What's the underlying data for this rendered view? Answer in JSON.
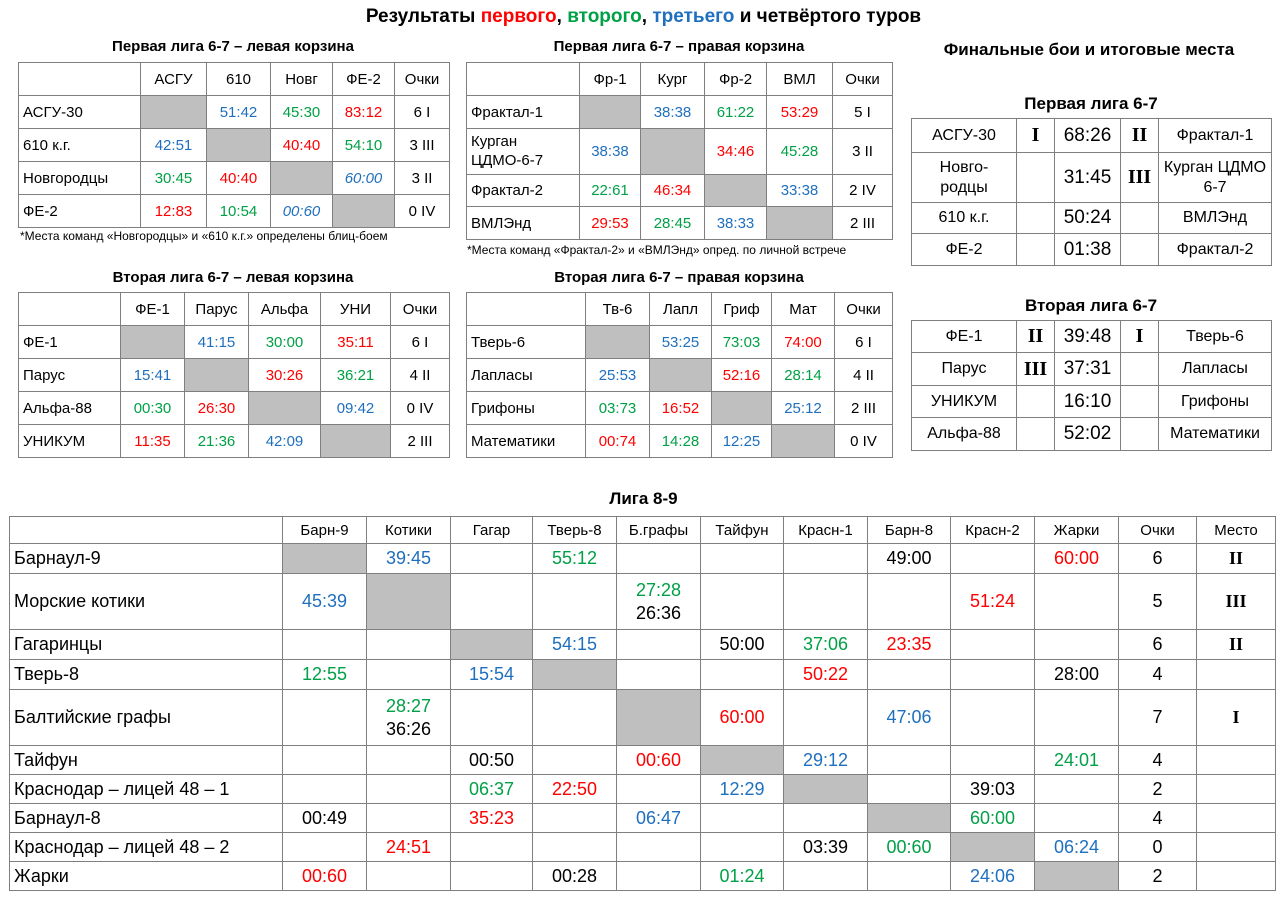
{
  "title": {
    "pre": "Результаты ",
    "w1": "первого",
    "sep1": ", ",
    "w2": "второго",
    "sep2": ", ",
    "w3": "третьего",
    "post": " и четвёртого туров"
  },
  "colors": {
    "red": "#ff0000",
    "green": "#00a046",
    "blue": "#1f6fbf",
    "gray": "#bfbfbf"
  },
  "league1_left": {
    "title": "Первая лига 6-7 – левая корзина",
    "headers": [
      "",
      "АСГУ",
      "610",
      "Новг",
      "ФЕ-2",
      "Очки"
    ],
    "rows": [
      [
        "АСГУ-30",
        "",
        "51:42",
        "45:30",
        "83:12",
        "6 I"
      ],
      [
        "610 к.г.",
        "42:51",
        "",
        "40:40",
        "54:10",
        "3 III"
      ],
      [
        "Новгородцы",
        "30:45",
        "40:40",
        "",
        "60:00",
        "3 II"
      ],
      [
        "ФЕ-2",
        "12:83",
        "10:54",
        "00:60",
        "",
        "0 IV"
      ]
    ],
    "note": "*Места команд «Новгородцы» и «610 к.г.» определены блиц-боем"
  },
  "league1_right": {
    "title": "Первая лига 6-7 – правая корзина",
    "headers": [
      "",
      "Фр-1",
      "Кург",
      "Фр-2",
      "ВМЛ",
      "Очки"
    ],
    "rows": [
      [
        "Фрактал-1",
        "",
        "38:38",
        "61:22",
        "53:29",
        "5 I"
      ],
      [
        "Курган ЦДМО-6-7",
        "38:38",
        "",
        "34:46",
        "45:28",
        "3 II"
      ],
      [
        "Фрактал-2",
        "22:61",
        "46:34",
        "",
        "33:38",
        "2 IV"
      ],
      [
        "ВМЛЭнд",
        "29:53",
        "28:45",
        "38:33",
        "",
        "2 III"
      ]
    ],
    "note": "*Места команд «Фрактал-2» и «ВМЛЭнд» опред. по личной встрече"
  },
  "league2_left": {
    "title": "Вторая лига 6-7 – левая корзина",
    "headers": [
      "",
      "ФЕ-1",
      "Парус",
      "Альфа",
      "УНИ",
      "Очки"
    ],
    "rows": [
      [
        "ФЕ-1",
        "",
        "41:15",
        "30:00",
        "35:11",
        "6 I"
      ],
      [
        "Парус",
        "15:41",
        "",
        "30:26",
        "36:21",
        "4 II"
      ],
      [
        "Альфа-88",
        "00:30",
        "26:30",
        "",
        "09:42",
        "0 IV"
      ],
      [
        "УНИКУМ",
        "11:35",
        "21:36",
        "42:09",
        "",
        "2 III"
      ]
    ]
  },
  "league2_right": {
    "title": "Вторая лига 6-7 – правая корзина",
    "headers": [
      "",
      "Тв-6",
      "Лапл",
      "Гриф",
      "Мат",
      "Очки"
    ],
    "rows": [
      [
        "Тверь-6",
        "",
        "53:25",
        "73:03",
        "74:00",
        "6 I"
      ],
      [
        "Лапласы",
        "25:53",
        "",
        "52:16",
        "28:14",
        "4 II"
      ],
      [
        "Грифоны",
        "03:73",
        "16:52",
        "",
        "25:12",
        "2 III"
      ],
      [
        "Математики",
        "00:74",
        "14:28",
        "12:25",
        "",
        "0 IV"
      ]
    ]
  },
  "finals": {
    "title": "Финальные бои и итоговые места",
    "league1": {
      "title": "Первая лига 6-7",
      "rows": [
        [
          "АСГУ-30",
          "I",
          "68:26",
          "II",
          "Фрактал-1"
        ],
        [
          "Новго-родцы",
          "",
          "31:45",
          "III",
          "Курган ЦДМО 6-7"
        ],
        [
          "610 к.г.",
          "",
          "50:24",
          "",
          "ВМЛЭнд"
        ],
        [
          "ФЕ-2",
          "",
          "01:38",
          "",
          "Фрактал-2"
        ]
      ]
    },
    "league2": {
      "title": "Вторая лига 6-7",
      "rows": [
        [
          "ФЕ-1",
          "II",
          "39:48",
          "I",
          "Тверь-6"
        ],
        [
          "Парус",
          "III",
          "37:31",
          "",
          "Лапласы"
        ],
        [
          "УНИКУМ",
          "",
          "16:10",
          "",
          "Грифоны"
        ],
        [
          "Альфа-88",
          "",
          "52:02",
          "",
          "Математики"
        ]
      ]
    }
  },
  "league89": {
    "title": "Лига 8-9",
    "headers": [
      "",
      "Барн-9",
      "Котики",
      "Гагар",
      "Тверь-8",
      "Б.графы",
      "Тайфун",
      "Красн-1",
      "Барн-8",
      "Красн-2",
      "Жарки",
      "Очки",
      "Место"
    ],
    "rows": [
      [
        "Барнаул-9",
        "",
        "39:45",
        "",
        "55:12",
        "",
        "",
        "",
        "49:00",
        "",
        "60:00",
        "6",
        "II"
      ],
      [
        "Морские котики",
        "45:39",
        "",
        "",
        "",
        "27:28 26:36",
        "",
        "",
        "",
        "51:24",
        "",
        "5",
        "III"
      ],
      [
        "Гагаринцы",
        "",
        "",
        "",
        "54:15",
        "",
        "50:00",
        "37:06",
        "23:35",
        "",
        "",
        "6",
        "II"
      ],
      [
        "Тверь-8",
        "12:55",
        "",
        "15:54",
        "",
        "",
        "",
        "50:22",
        "",
        "",
        "28:00",
        "4",
        ""
      ],
      [
        "Балтийские графы",
        "",
        "28:27 36:26",
        "",
        "",
        "",
        "60:00",
        "",
        "47:06",
        "",
        "",
        "7",
        "I"
      ],
      [
        "Тайфун",
        "",
        "",
        "00:50",
        "",
        "00:60",
        "",
        "29:12",
        "",
        "",
        "24:01",
        "4",
        ""
      ],
      [
        "Краснодар – лицей 48 – 1",
        "",
        "",
        "06:37",
        "22:50",
        "",
        "12:29",
        "",
        "",
        "39:03",
        "",
        "2",
        ""
      ],
      [
        "Барнаул-8",
        "00:49",
        "",
        "35:23",
        "",
        "06:47",
        "",
        "",
        "",
        "60:00",
        "",
        "4",
        ""
      ],
      [
        "Краснодар – лицей 48 – 2",
        "",
        "24:51",
        "",
        "",
        "",
        "",
        "03:39",
        "00:60",
        "",
        "06:24",
        "0",
        ""
      ],
      [
        "Жарки",
        "00:60",
        "",
        "",
        "00:28",
        "",
        "01:24",
        "",
        "",
        "24:06",
        "",
        "2",
        ""
      ]
    ]
  }
}
